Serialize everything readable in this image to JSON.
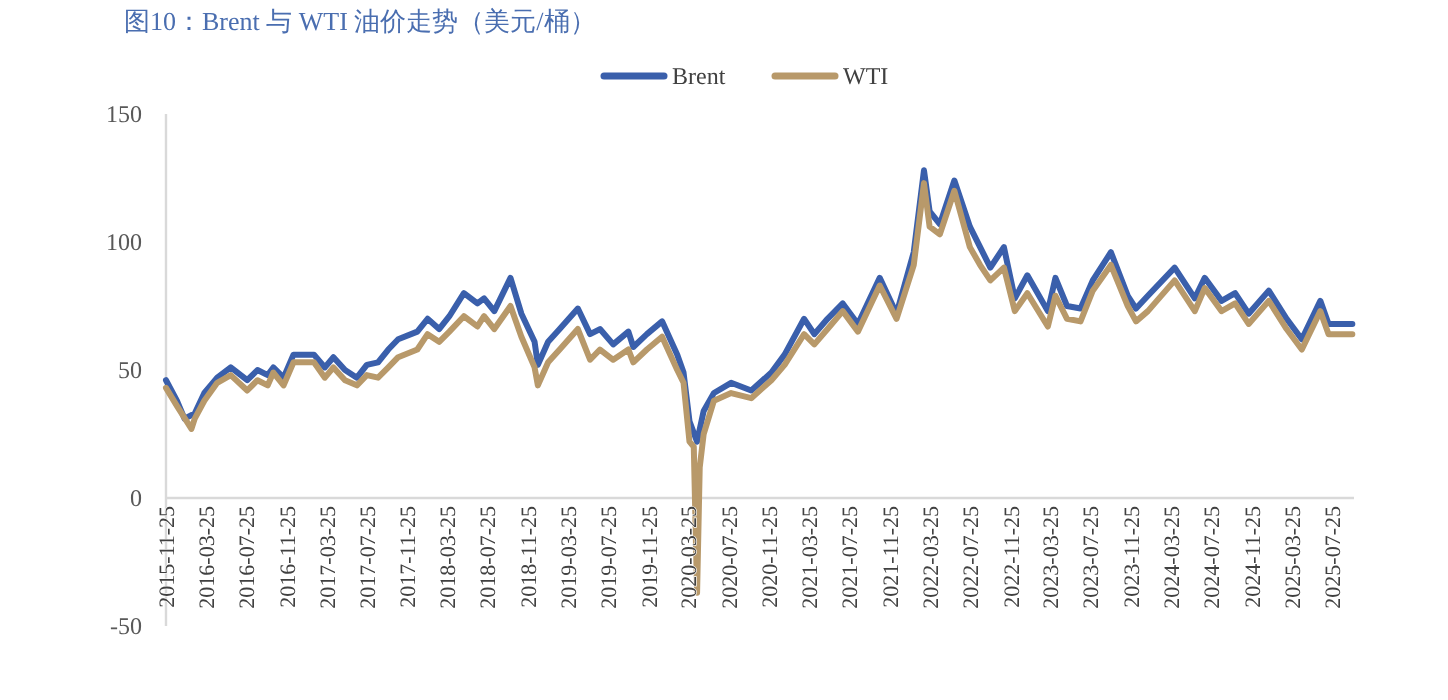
{
  "chart_data": {
    "type": "line",
    "title": "图10：Brent 与 WTI 油价走势（美元/桶）",
    "xlim": [
      "2015-11-25",
      "2025-09-30"
    ],
    "ylim": [
      -50,
      150
    ],
    "yticks": [
      -50,
      0,
      50,
      100,
      150
    ],
    "xticks": [
      "2015-11-25",
      "2016-03-25",
      "2016-07-25",
      "2016-11-25",
      "2017-03-25",
      "2017-07-25",
      "2017-11-25",
      "2018-03-25",
      "2018-07-25",
      "2018-11-25",
      "2019-03-25",
      "2019-07-25",
      "2019-11-25",
      "2020-03-25",
      "2020-07-25",
      "2020-11-25",
      "2021-03-25",
      "2021-07-25",
      "2021-11-25",
      "2022-03-25",
      "2022-07-25",
      "2022-11-25",
      "2023-03-25",
      "2023-07-25",
      "2023-11-25",
      "2024-03-25",
      "2024-07-25",
      "2024-11-25",
      "2025-03-25",
      "2025-07-25"
    ],
    "legend": "top",
    "grid": false,
    "marker": "none",
    "line_style": "solid",
    "series": [
      {
        "name": "Brent",
        "color": "#3a5fab",
        "x": [
          "2015-11-25",
          "2015-12-28",
          "2016-01-20",
          "2016-02-20",
          "2016-03-20",
          "2016-04-28",
          "2016-06-08",
          "2016-07-28",
          "2016-08-28",
          "2016-09-28",
          "2016-10-15",
          "2016-11-15",
          "2016-12-15",
          "2017-02-15",
          "2017-03-20",
          "2017-04-15",
          "2017-05-20",
          "2017-06-25",
          "2017-07-25",
          "2017-08-28",
          "2017-09-28",
          "2017-10-28",
          "2017-12-25",
          "2018-01-25",
          "2018-03-01",
          "2018-04-01",
          "2018-05-15",
          "2018-06-25",
          "2018-07-15",
          "2018-08-15",
          "2018-10-03",
          "2018-11-05",
          "2018-12-15",
          "2018-12-25",
          "2019-01-25",
          "2019-03-01",
          "2019-04-25",
          "2019-06-01",
          "2019-07-01",
          "2019-08-10",
          "2019-09-25",
          "2019-10-10",
          "2019-11-20",
          "2020-01-05",
          "2020-02-20",
          "2020-03-10",
          "2020-03-28",
          "2020-04-20",
          "2020-05-10",
          "2020-06-10",
          "2020-08-01",
          "2020-10-01",
          "2020-12-01",
          "2021-01-10",
          "2021-03-10",
          "2021-04-10",
          "2021-05-20",
          "2021-07-05",
          "2021-08-20",
          "2021-10-25",
          "2021-12-15",
          "2022-02-05",
          "2022-03-08",
          "2022-03-25",
          "2022-04-25",
          "2022-06-08",
          "2022-07-25",
          "2022-08-25",
          "2022-09-25",
          "2022-11-05",
          "2022-12-08",
          "2023-01-15",
          "2023-03-18",
          "2023-04-10",
          "2023-05-15",
          "2023-06-25",
          "2023-08-01",
          "2023-09-25",
          "2023-11-15",
          "2023-12-10",
          "2024-01-15",
          "2024-04-05",
          "2024-06-05",
          "2024-07-05",
          "2024-08-25",
          "2024-10-05",
          "2024-11-15",
          "2025-01-15",
          "2025-03-10",
          "2025-04-25",
          "2025-06-20",
          "2025-07-15",
          "2025-09-25"
        ],
        "values": [
          46,
          38,
          31,
          33,
          41,
          47,
          51,
          46,
          50,
          48,
          51,
          47,
          56,
          56,
          51,
          55,
          50,
          47,
          52,
          53,
          58,
          62,
          65,
          70,
          66,
          71,
          80,
          76,
          78,
          73,
          86,
          72,
          61,
          52,
          61,
          66,
          74,
          64,
          66,
          60,
          65,
          59,
          64,
          69,
          56,
          49,
          30,
          22,
          34,
          41,
          45,
          42,
          49,
          56,
          70,
          64,
          70,
          76,
          68,
          86,
          72,
          96,
          128,
          112,
          107,
          124,
          106,
          98,
          90,
          98,
          78,
          87,
          73,
          86,
          75,
          74,
          85,
          96,
          79,
          74,
          79,
          90,
          78,
          86,
          77,
          80,
          72,
          81,
          70,
          62,
          77,
          68,
          68
        ]
      },
      {
        "name": "WTI",
        "color": "#b8996a",
        "x": [
          "2015-11-25",
          "2015-12-28",
          "2016-02-10",
          "2016-02-20",
          "2016-03-20",
          "2016-04-28",
          "2016-06-08",
          "2016-07-28",
          "2016-08-28",
          "2016-09-28",
          "2016-10-15",
          "2016-11-15",
          "2016-12-15",
          "2017-02-15",
          "2017-03-20",
          "2017-04-15",
          "2017-05-20",
          "2017-06-25",
          "2017-07-25",
          "2017-08-28",
          "2017-09-28",
          "2017-10-28",
          "2017-12-25",
          "2018-01-25",
          "2018-03-01",
          "2018-04-01",
          "2018-05-15",
          "2018-06-25",
          "2018-07-15",
          "2018-08-15",
          "2018-10-03",
          "2018-11-05",
          "2018-12-15",
          "2018-12-25",
          "2019-01-25",
          "2019-03-01",
          "2019-04-25",
          "2019-06-01",
          "2019-07-01",
          "2019-08-10",
          "2019-09-25",
          "2019-10-10",
          "2019-11-20",
          "2020-01-05",
          "2020-02-20",
          "2020-03-10",
          "2020-03-28",
          "2020-04-10",
          "2020-04-20",
          "2020-04-28",
          "2020-05-10",
          "2020-06-10",
          "2020-08-01",
          "2020-10-01",
          "2020-12-01",
          "2021-01-10",
          "2021-03-10",
          "2021-04-10",
          "2021-05-20",
          "2021-07-05",
          "2021-08-20",
          "2021-10-25",
          "2021-12-15",
          "2022-02-05",
          "2022-03-08",
          "2022-03-25",
          "2022-04-25",
          "2022-06-08",
          "2022-07-25",
          "2022-08-25",
          "2022-09-25",
          "2022-11-05",
          "2022-12-08",
          "2023-01-15",
          "2023-03-18",
          "2023-04-10",
          "2023-05-15",
          "2023-06-25",
          "2023-08-01",
          "2023-09-25",
          "2023-11-15",
          "2023-12-10",
          "2024-01-15",
          "2024-04-05",
          "2024-06-05",
          "2024-07-05",
          "2024-08-25",
          "2024-10-05",
          "2024-11-15",
          "2025-01-15",
          "2025-03-10",
          "2025-04-25",
          "2025-06-20",
          "2025-07-15",
          "2025-09-25"
        ],
        "values": [
          43,
          36,
          27,
          31,
          38,
          45,
          48,
          42,
          46,
          44,
          49,
          44,
          53,
          53,
          47,
          51,
          46,
          44,
          48,
          47,
          51,
          55,
          58,
          64,
          61,
          65,
          71,
          67,
          71,
          66,
          75,
          63,
          51,
          44,
          53,
          58,
          66,
          54,
          58,
          54,
          58,
          53,
          58,
          63,
          50,
          45,
          22,
          20,
          -37,
          12,
          25,
          38,
          41,
          39,
          46,
          52,
          64,
          60,
          66,
          73,
          65,
          83,
          70,
          91,
          123,
          106,
          103,
          120,
          98,
          91,
          85,
          90,
          73,
          80,
          67,
          79,
          70,
          69,
          81,
          91,
          75,
          69,
          73,
          85,
          73,
          82,
          73,
          76,
          68,
          77,
          66,
          58,
          73,
          64,
          64
        ]
      }
    ]
  }
}
